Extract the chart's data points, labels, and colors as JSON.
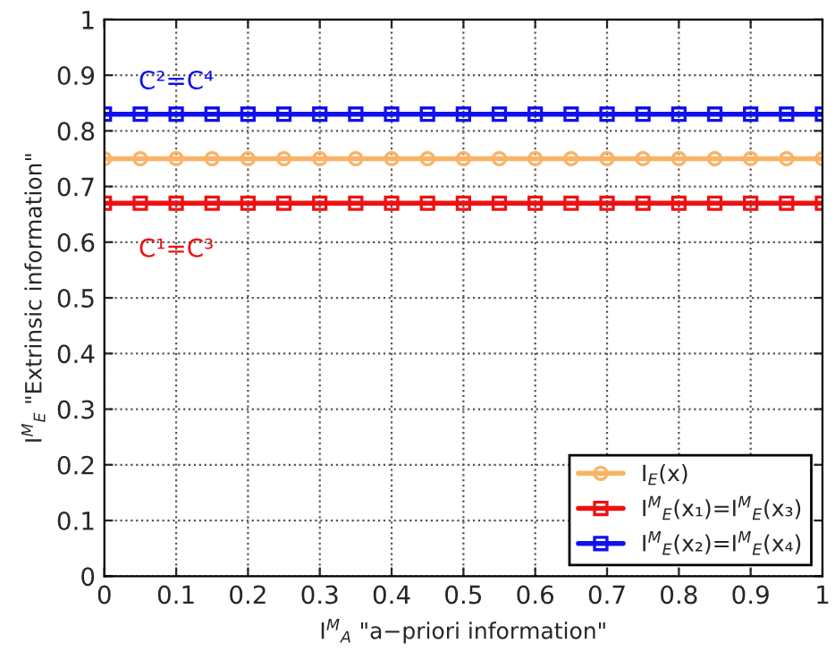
{
  "chart_data": {
    "type": "line",
    "xlabel": "I$^{M}$$_{A}$ \"a−priori information\"",
    "ylabel": "I$^{M}$$_{E}$ \"Extrinsic information\"",
    "x": [
      0,
      0.05,
      0.1,
      0.15,
      0.2,
      0.25,
      0.3,
      0.35,
      0.4,
      0.45,
      0.5,
      0.55,
      0.6,
      0.65,
      0.7,
      0.75,
      0.8,
      0.85,
      0.9,
      0.95,
      1
    ],
    "series": [
      {
        "name": "I$_{E}$(x)",
        "color": "#f9b366",
        "marker": "circle",
        "values": [
          0.75,
          0.75,
          0.75,
          0.75,
          0.75,
          0.75,
          0.75,
          0.75,
          0.75,
          0.75,
          0.75,
          0.75,
          0.75,
          0.75,
          0.75,
          0.75,
          0.75,
          0.75,
          0.75,
          0.75,
          0.75
        ]
      },
      {
        "name": "I$^{M}$$_{E}$(x₁)=I$^{M}$$_{E}$(x₃)",
        "color": "#ee1111",
        "marker": "square",
        "values": [
          0.67,
          0.67,
          0.67,
          0.67,
          0.67,
          0.67,
          0.67,
          0.67,
          0.67,
          0.67,
          0.67,
          0.67,
          0.67,
          0.67,
          0.67,
          0.67,
          0.67,
          0.67,
          0.67,
          0.67,
          0.67
        ]
      },
      {
        "name": "I$^{M}$$_{E}$(x₂)=I$^{M}$$_{E}$(x₄)",
        "color": "#1111ee",
        "marker": "square",
        "values": [
          0.83,
          0.83,
          0.83,
          0.83,
          0.83,
          0.83,
          0.83,
          0.83,
          0.83,
          0.83,
          0.83,
          0.83,
          0.83,
          0.83,
          0.83,
          0.83,
          0.83,
          0.83,
          0.83,
          0.83,
          0.83
        ]
      }
    ],
    "annotations": [
      "C²=C⁴",
      "C¹=C³"
    ],
    "xlim": [
      0,
      1
    ],
    "ylim": [
      0,
      1
    ],
    "xticks": [
      0,
      0.1,
      0.2,
      0.3,
      0.4,
      0.5,
      0.6,
      0.7,
      0.8,
      0.9,
      1
    ],
    "yticks": [
      0,
      0.1,
      0.2,
      0.3,
      0.4,
      0.5,
      0.6,
      0.7,
      0.8,
      0.9,
      1
    ],
    "grid": true,
    "legend": "bottom right",
    "line_style": "solid"
  }
}
